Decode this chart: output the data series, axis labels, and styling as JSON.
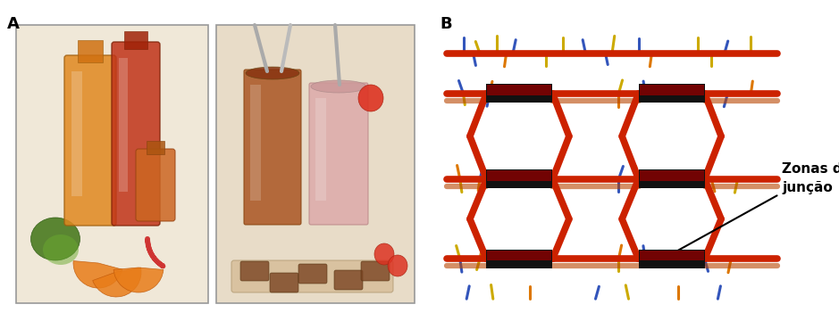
{
  "fig_width": 9.39,
  "fig_height": 3.6,
  "dpi": 100,
  "label_A": "A",
  "label_B": "B",
  "bg_color": "#ffffff",
  "chain_color": "#cc2200",
  "chain_color2": "#b84400",
  "junction_black": "#111111",
  "junction_red": "#8B0000",
  "side_blue": "#3355bb",
  "side_yellow": "#ccaa00",
  "side_orange": "#dd7700",
  "annotation_text": "Zonas de\njunção",
  "photo1_bg": "#f0e8d8",
  "photo1_jar1": "#e08820",
  "photo1_jar2": "#c03318",
  "photo1_jar3": "#cc6622",
  "photo1_lime": "#4a7a20",
  "photo1_orange": "#e87c18",
  "photo2_bg": "#e8dcc8",
  "photo2_glass1": "#884422",
  "photo2_glass2": "#ddaaaa",
  "photo2_straw": "#aaaaaa"
}
